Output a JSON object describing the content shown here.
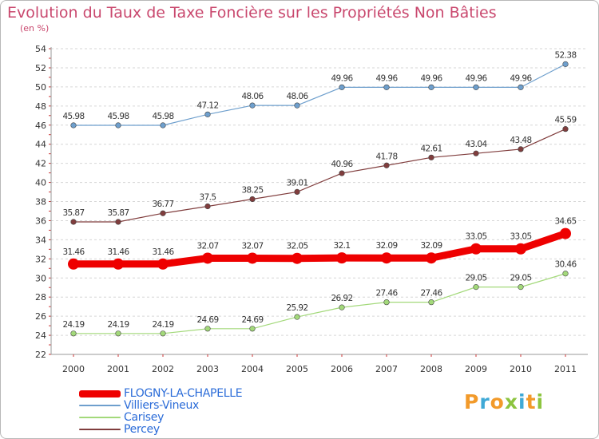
{
  "title": "Evolution du Taux de Taxe Foncière sur les Propriétés Non Bâties",
  "unit": "(en %)",
  "logo": {
    "letters": [
      "P",
      "r",
      "o",
      "x",
      "i",
      "t",
      "i"
    ],
    "colors": [
      "#f29a2a",
      "#3fa9d6",
      "#f29a2a",
      "#8cc43f",
      "#3fa9d6",
      "#f29a2a",
      "#8cc43f"
    ]
  },
  "chart_data": {
    "type": "line",
    "categories": [
      "2000",
      "2001",
      "2002",
      "2003",
      "2004",
      "2005",
      "2006",
      "2007",
      "2008",
      "2009",
      "2010",
      "2011"
    ],
    "ylim": [
      22,
      54
    ],
    "yticks": [
      22,
      24,
      26,
      28,
      30,
      32,
      34,
      36,
      38,
      40,
      42,
      44,
      46,
      48,
      50,
      52,
      54
    ],
    "grid": "horizontal dashed",
    "legend_position": "bottom-left",
    "series": [
      {
        "name": "FLOGNY-LA-CHAPELLE",
        "color": "#ee0000",
        "values": [
          31.46,
          31.46,
          31.46,
          32.07,
          32.07,
          32.05,
          32.1,
          32.09,
          32.09,
          33.05,
          33.05,
          34.65
        ],
        "labels": [
          "31.46",
          "31.46",
          "31.46",
          "32.07",
          "32.07",
          "32.05",
          "32.1",
          "32.09",
          "32.09",
          "33.05",
          "33.05",
          "34.65"
        ]
      },
      {
        "name": "Villiers-Vineux",
        "color": "#6e9fcd",
        "values": [
          45.98,
          45.98,
          45.98,
          47.12,
          48.06,
          48.06,
          49.96,
          49.96,
          49.96,
          49.96,
          49.96,
          52.38
        ],
        "labels": [
          "45.98",
          "45.98",
          "45.98",
          "47.12",
          "48.06",
          "48.06",
          "49.96",
          "49.96",
          "49.96",
          "49.96",
          "49.96",
          "52.38"
        ]
      },
      {
        "name": "Carisey",
        "color": "#a3d97a",
        "values": [
          24.19,
          24.19,
          24.19,
          24.69,
          24.69,
          25.92,
          26.92,
          27.46,
          27.46,
          29.05,
          29.05,
          30.46
        ],
        "labels": [
          "24.19",
          "24.19",
          "24.19",
          "24.69",
          "24.69",
          "25.92",
          "26.92",
          "27.46",
          "27.46",
          "29.05",
          "29.05",
          "30.46"
        ]
      },
      {
        "name": "Percey",
        "color": "#803d3d",
        "values": [
          35.87,
          35.87,
          36.77,
          37.5,
          38.25,
          39.01,
          40.96,
          41.78,
          42.61,
          43.04,
          43.48,
          45.59
        ],
        "labels": [
          "35.87",
          "35.87",
          "36.77",
          "37.5",
          "38.25",
          "39.01",
          "40.96",
          "41.78",
          "42.61",
          "43.04",
          "43.48",
          "45.59"
        ]
      }
    ]
  }
}
